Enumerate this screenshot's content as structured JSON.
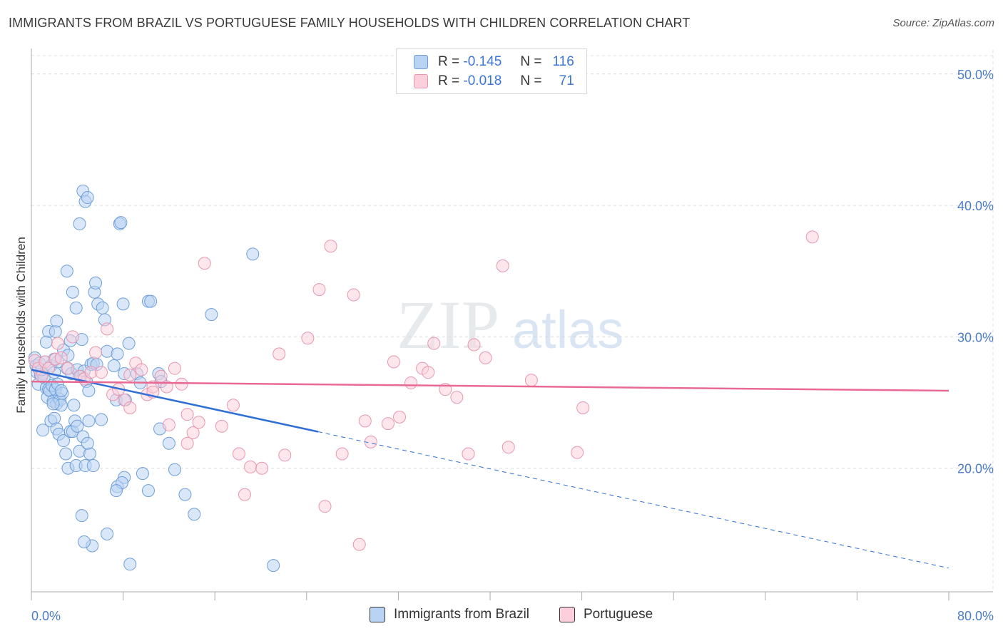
{
  "title": "IMMIGRANTS FROM BRAZIL VS PORTUGUESE FAMILY HOUSEHOLDS WITH CHILDREN CORRELATION CHART",
  "source": "Source: ZipAtlas.com",
  "watermark": {
    "zip": "ZIP",
    "atlas": "atlas"
  },
  "legend": {
    "r_label": "R =",
    "n_label": "N =",
    "series1": {
      "r": "-0.145",
      "n": "116"
    },
    "series2": {
      "r": "-0.018",
      "n": "71"
    }
  },
  "colors": {
    "blue": "#6f9fd8",
    "blue_fill": "#b9d3f3",
    "blue_line": "#2f6fd6",
    "pink": "#e896ae",
    "pink_fill": "#fbd0dc",
    "pink_line": "#e86a94",
    "tick": "#4a7cc9"
  },
  "chart_data": {
    "type": "scatter",
    "title": "IMMIGRANTS FROM BRAZIL VS PORTUGUESE FAMILY HOUSEHOLDS WITH CHILDREN CORRELATION CHART",
    "xlabel": "",
    "ylabel": "Family Households with Children",
    "xlim": [
      0,
      80
    ],
    "ylim": [
      10.6,
      51.4
    ],
    "x_tick_labels": [
      "0.0%",
      "80.0%"
    ],
    "y_ticks": [
      20,
      30,
      40,
      50
    ],
    "y_tick_labels": [
      "20.0%",
      "30.0%",
      "40.0%",
      "50.0%"
    ],
    "series": [
      {
        "name": "Immigrants from Brazil",
        "r": -0.145,
        "n": 116,
        "trend": {
          "x0": 0,
          "y0": 27.5,
          "x1": 80,
          "y1": 12.4,
          "solid_until": 25
        },
        "points": [
          [
            0.3,
            28.4
          ],
          [
            0.5,
            27.3
          ],
          [
            0.6,
            26.4
          ],
          [
            0.4,
            27.8
          ],
          [
            0.8,
            27.1
          ],
          [
            0.7,
            28.0
          ],
          [
            1.0,
            27.2
          ],
          [
            1.1,
            26.9
          ],
          [
            0.9,
            27.5
          ],
          [
            1.2,
            28.1
          ],
          [
            1.3,
            26.1
          ],
          [
            1.4,
            25.4
          ],
          [
            1.5,
            26.0
          ],
          [
            1.6,
            25.9
          ],
          [
            1.7,
            27.8
          ],
          [
            1.8,
            26.3
          ],
          [
            1.9,
            25.1
          ],
          [
            2.0,
            27.3
          ],
          [
            2.1,
            26.0
          ],
          [
            2.2,
            24.9
          ],
          [
            2.3,
            26.4
          ],
          [
            2.4,
            25.3
          ],
          [
            2.5,
            25.2
          ],
          [
            2.6,
            24.8
          ],
          [
            2.7,
            25.7
          ],
          [
            1.0,
            22.9
          ],
          [
            1.7,
            23.6
          ],
          [
            2.0,
            23.8
          ],
          [
            2.2,
            23.0
          ],
          [
            2.4,
            22.6
          ],
          [
            2.8,
            22.1
          ],
          [
            3.0,
            21.1
          ],
          [
            3.4,
            22.8
          ],
          [
            3.6,
            22.8
          ],
          [
            3.8,
            23.6
          ],
          [
            4.0,
            23.2
          ],
          [
            4.2,
            21.3
          ],
          [
            4.5,
            22.4
          ],
          [
            3.2,
            20.0
          ],
          [
            3.9,
            20.2
          ],
          [
            4.7,
            20.2
          ],
          [
            5.0,
            23.6
          ],
          [
            1.5,
            30.4
          ],
          [
            2.1,
            30.4
          ],
          [
            2.2,
            31.2
          ],
          [
            1.3,
            29.6
          ],
          [
            2.8,
            29.0
          ],
          [
            3.2,
            28.6
          ],
          [
            3.4,
            29.7
          ],
          [
            3.1,
            27.6
          ],
          [
            3.5,
            27.2
          ],
          [
            4.0,
            27.5
          ],
          [
            4.3,
            27.0
          ],
          [
            4.6,
            27.4
          ],
          [
            4.8,
            26.6
          ],
          [
            5.0,
            25.9
          ],
          [
            5.2,
            27.9
          ],
          [
            5.4,
            28.0
          ],
          [
            5.7,
            27.9
          ],
          [
            2.3,
            28.1
          ],
          [
            4.4,
            29.8
          ],
          [
            2.0,
            28.3
          ],
          [
            3.1,
            35.0
          ],
          [
            3.6,
            33.4
          ],
          [
            3.9,
            32.2
          ],
          [
            4.2,
            38.6
          ],
          [
            4.5,
            41.1
          ],
          [
            4.7,
            40.3
          ],
          [
            4.9,
            40.6
          ],
          [
            5.5,
            33.4
          ],
          [
            5.6,
            34.1
          ],
          [
            5.8,
            32.5
          ],
          [
            6.2,
            32.2
          ],
          [
            6.4,
            31.3
          ],
          [
            6.6,
            28.9
          ],
          [
            7.5,
            28.7
          ],
          [
            7.2,
            27.8
          ],
          [
            8.1,
            27.2
          ],
          [
            7.4,
            25.2
          ],
          [
            8.2,
            25.2
          ],
          [
            8.5,
            29.5
          ],
          [
            8.0,
            32.5
          ],
          [
            9.2,
            27.2
          ],
          [
            9.5,
            26.5
          ],
          [
            10.2,
            32.7
          ],
          [
            10.4,
            32.7
          ],
          [
            11.1,
            27.2
          ],
          [
            11.3,
            26.6
          ],
          [
            7.7,
            38.6
          ],
          [
            7.8,
            38.7
          ],
          [
            9.7,
            19.6
          ],
          [
            7.5,
            18.6
          ],
          [
            8.1,
            19.3
          ],
          [
            7.9,
            18.9
          ],
          [
            7.4,
            18.3
          ],
          [
            10.2,
            18.3
          ],
          [
            12.0,
            21.9
          ],
          [
            12.5,
            19.9
          ],
          [
            15.7,
            31.7
          ],
          [
            19.3,
            36.3
          ],
          [
            11.2,
            23.0
          ],
          [
            13.4,
            18.0
          ],
          [
            14.2,
            16.5
          ],
          [
            6.6,
            15.0
          ],
          [
            5.3,
            14.1
          ],
          [
            4.6,
            14.4
          ],
          [
            8.6,
            12.7
          ],
          [
            21.1,
            12.6
          ],
          [
            4.4,
            16.4
          ],
          [
            5.1,
            21.1
          ],
          [
            5.4,
            20.2
          ],
          [
            6.1,
            23.7
          ],
          [
            4.9,
            21.9
          ],
          [
            3.7,
            24.8
          ],
          [
            2.6,
            25.9
          ],
          [
            1.9,
            24.9
          ]
        ]
      },
      {
        "name": "Portuguese",
        "r": -0.018,
        "n": 71,
        "trend": {
          "x0": 0,
          "y0": 26.6,
          "x1": 80,
          "y1": 25.9
        },
        "points": [
          [
            0.3,
            28.2
          ],
          [
            0.6,
            27.6
          ],
          [
            0.9,
            27.0
          ],
          [
            1.2,
            28.1
          ],
          [
            1.5,
            27.6
          ],
          [
            2.1,
            28.3
          ],
          [
            2.3,
            29.5
          ],
          [
            2.6,
            28.4
          ],
          [
            3.2,
            27.6
          ],
          [
            3.6,
            30.0
          ],
          [
            4.2,
            27.0
          ],
          [
            4.6,
            26.8
          ],
          [
            5.2,
            27.3
          ],
          [
            5.6,
            28.8
          ],
          [
            6.1,
            27.3
          ],
          [
            6.6,
            30.6
          ],
          [
            7.1,
            25.6
          ],
          [
            7.6,
            26.0
          ],
          [
            8.1,
            25.2
          ],
          [
            8.6,
            27.1
          ],
          [
            9.1,
            28.0
          ],
          [
            9.6,
            27.5
          ],
          [
            10.1,
            25.6
          ],
          [
            10.6,
            26.2
          ],
          [
            11.3,
            27.0
          ],
          [
            11.8,
            26.2
          ],
          [
            12.0,
            23.3
          ],
          [
            12.5,
            27.6
          ],
          [
            13.1,
            26.4
          ],
          [
            13.6,
            24.1
          ],
          [
            14.1,
            22.7
          ],
          [
            14.6,
            23.5
          ],
          [
            15.1,
            35.6
          ],
          [
            16.6,
            23.2
          ],
          [
            17.6,
            24.8
          ],
          [
            18.1,
            21.1
          ],
          [
            18.6,
            18.0
          ],
          [
            19.1,
            20.1
          ],
          [
            20.1,
            20.0
          ],
          [
            21.6,
            28.7
          ],
          [
            22.1,
            21.0
          ],
          [
            24.1,
            29.9
          ],
          [
            25.1,
            33.6
          ],
          [
            25.6,
            17.1
          ],
          [
            26.1,
            36.9
          ],
          [
            27.1,
            21.1
          ],
          [
            28.1,
            33.2
          ],
          [
            28.6,
            14.2
          ],
          [
            29.1,
            23.6
          ],
          [
            29.6,
            22.0
          ],
          [
            31.1,
            23.4
          ],
          [
            32.1,
            23.9
          ],
          [
            33.1,
            26.5
          ],
          [
            31.6,
            28.1
          ],
          [
            34.1,
            27.6
          ],
          [
            34.6,
            27.3
          ],
          [
            35.1,
            29.5
          ],
          [
            36.1,
            26.0
          ],
          [
            37.1,
            25.4
          ],
          [
            38.1,
            21.1
          ],
          [
            38.6,
            29.4
          ],
          [
            39.6,
            28.4
          ],
          [
            41.1,
            35.4
          ],
          [
            41.6,
            21.6
          ],
          [
            43.6,
            26.7
          ],
          [
            47.6,
            21.2
          ],
          [
            48.1,
            24.6
          ],
          [
            68.1,
            37.6
          ],
          [
            13.6,
            21.9
          ],
          [
            8.6,
            24.6
          ],
          [
            10.6,
            25.8
          ]
        ]
      }
    ]
  }
}
